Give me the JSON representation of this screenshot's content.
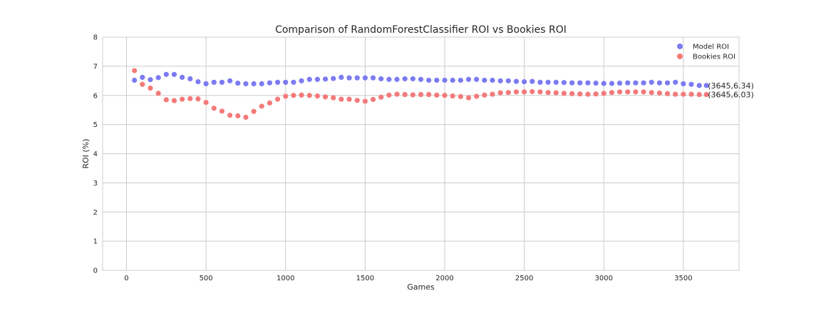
{
  "chart_data": {
    "type": "scatter",
    "title": "Comparison of RandomForestClassifier ROI vs Bookies ROI",
    "xlabel": "Games",
    "ylabel": "ROI (%)",
    "xlim": [
      -150,
      3850
    ],
    "ylim": [
      0,
      8
    ],
    "xticks": [
      0,
      500,
      1000,
      1500,
      2000,
      2500,
      3000,
      3500
    ],
    "yticks": [
      0,
      1,
      2,
      3,
      4,
      5,
      6,
      7,
      8
    ],
    "grid": true,
    "legend_position": "top-right",
    "x": [
      50,
      100,
      150,
      200,
      250,
      300,
      350,
      400,
      450,
      500,
      550,
      600,
      650,
      700,
      750,
      800,
      850,
      900,
      950,
      1000,
      1050,
      1100,
      1150,
      1200,
      1250,
      1300,
      1350,
      1400,
      1450,
      1500,
      1550,
      1600,
      1650,
      1700,
      1750,
      1800,
      1850,
      1900,
      1950,
      2000,
      2050,
      2100,
      2150,
      2200,
      2250,
      2300,
      2350,
      2400,
      2450,
      2500,
      2550,
      2600,
      2650,
      2700,
      2750,
      2800,
      2850,
      2900,
      2950,
      3000,
      3050,
      3100,
      3150,
      3200,
      3250,
      3300,
      3350,
      3400,
      3450,
      3500,
      3550,
      3600,
      3645
    ],
    "series": [
      {
        "name": "Model ROI",
        "color": "#7b7bf2",
        "values": [
          6.52,
          6.62,
          6.54,
          6.61,
          6.72,
          6.72,
          6.62,
          6.57,
          6.47,
          6.4,
          6.45,
          6.45,
          6.5,
          6.42,
          6.4,
          6.4,
          6.4,
          6.43,
          6.45,
          6.45,
          6.45,
          6.5,
          6.55,
          6.55,
          6.56,
          6.58,
          6.62,
          6.6,
          6.6,
          6.6,
          6.6,
          6.57,
          6.55,
          6.55,
          6.57,
          6.57,
          6.55,
          6.52,
          6.52,
          6.52,
          6.52,
          6.52,
          6.55,
          6.55,
          6.52,
          6.52,
          6.5,
          6.5,
          6.48,
          6.47,
          6.48,
          6.45,
          6.45,
          6.45,
          6.44,
          6.43,
          6.43,
          6.43,
          6.42,
          6.41,
          6.41,
          6.42,
          6.43,
          6.43,
          6.43,
          6.45,
          6.43,
          6.43,
          6.45,
          6.4,
          6.38,
          6.34,
          6.34
        ]
      },
      {
        "name": "Bookies ROI",
        "color": "#f47a7a",
        "values": [
          6.85,
          6.38,
          6.25,
          6.07,
          5.85,
          5.82,
          5.87,
          5.89,
          5.88,
          5.76,
          5.56,
          5.46,
          5.32,
          5.3,
          5.25,
          5.45,
          5.63,
          5.74,
          5.87,
          5.97,
          6.0,
          6.01,
          6.0,
          5.98,
          5.95,
          5.92,
          5.87,
          5.87,
          5.83,
          5.8,
          5.86,
          5.94,
          6.01,
          6.04,
          6.03,
          6.02,
          6.03,
          6.03,
          6.01,
          6.0,
          5.98,
          5.96,
          5.92,
          5.97,
          6.01,
          6.04,
          6.09,
          6.1,
          6.12,
          6.12,
          6.13,
          6.12,
          6.1,
          6.09,
          6.07,
          6.06,
          6.05,
          6.04,
          6.05,
          6.07,
          6.1,
          6.12,
          6.12,
          6.12,
          6.12,
          6.1,
          6.08,
          6.06,
          6.04,
          6.04,
          6.04,
          6.03,
          6.03
        ]
      }
    ],
    "annotations": [
      {
        "text": "(3645,6.34)",
        "x": 3645,
        "y": 6.34
      },
      {
        "text": "(3645,6.03)",
        "x": 3645,
        "y": 6.03
      }
    ]
  }
}
